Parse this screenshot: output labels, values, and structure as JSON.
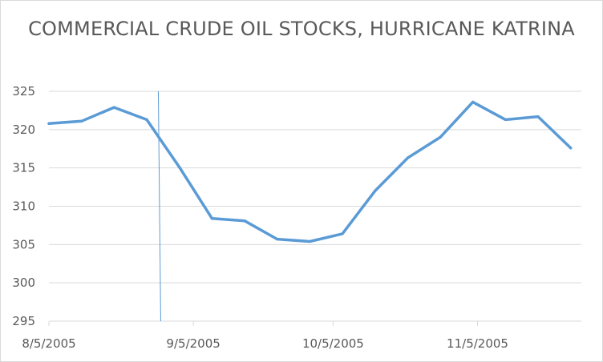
{
  "chart_data": {
    "type": "line",
    "title": "COMMERCIAL CRUDE OIL STOCKS, HURRICANE KATRINA",
    "xlabel": "",
    "ylabel": "",
    "ylim": [
      295,
      325
    ],
    "yticks": [
      "325",
      "320",
      "315",
      "310",
      "305",
      "300",
      "295"
    ],
    "ytick_values": [
      325,
      320,
      315,
      310,
      305,
      300,
      295
    ],
    "xlim": [
      "2005-08-05",
      "2005-11-30"
    ],
    "xticks": [
      "8/5/2005",
      "9/5/2005",
      "10/5/2005",
      "11/5/2005"
    ],
    "xtick_dates": [
      "2005-08-05",
      "2005-09-05",
      "2005-10-05",
      "2005-11-05"
    ],
    "grid": true,
    "legend": "none",
    "line_color": "#5b9bd5",
    "marker_line": {
      "date": "2005-08-29",
      "color": "#5b9bd5"
    },
    "series": [
      {
        "x": [
          "2005-08-05",
          "2005-08-12",
          "2005-08-19",
          "2005-08-26",
          "2005-09-02",
          "2005-09-09",
          "2005-09-16",
          "2005-09-23",
          "2005-09-30",
          "2005-10-07",
          "2005-10-14",
          "2005-10-21",
          "2005-10-28",
          "2005-11-04",
          "2005-11-11",
          "2005-11-18",
          "2005-11-25"
        ],
        "values": [
          320.8,
          321.1,
          322.9,
          321.3,
          315.1,
          308.4,
          308.1,
          305.7,
          305.4,
          306.4,
          312.0,
          316.3,
          319.0,
          323.6,
          321.3,
          321.7,
          317.6
        ]
      }
    ]
  }
}
